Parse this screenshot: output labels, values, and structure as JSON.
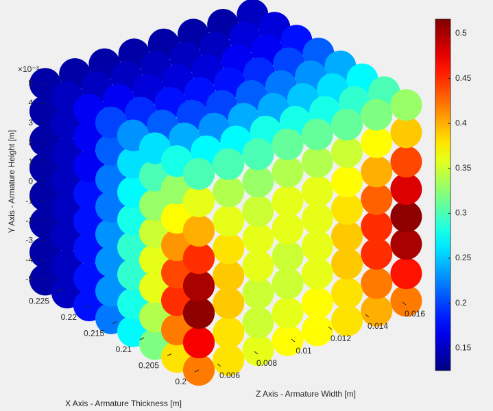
{
  "chart_data": {
    "type": "scatter3d",
    "x_label": "X Axis - Armature Thickness [m]",
    "y_label": "Y Axis - Armature Height [m]",
    "z_label": "Z Axis - Armature Width [m]",
    "y_scale_label": "×10⁻³",
    "x": [
      0.2,
      0.204,
      0.208,
      0.212,
      0.216,
      0.22,
      0.224,
      0.228
    ],
    "y": [
      -0.005,
      -0.0036,
      -0.0021,
      -0.0007,
      0.0007,
      0.0021,
      0.0036,
      0.005
    ],
    "z": [
      0.005,
      0.0066,
      0.0082,
      0.0098,
      0.0114,
      0.013,
      0.0146,
      0.0162
    ],
    "faces": {
      "z_min": [
        [
          0.42,
          0.38,
          0.32,
          0.27,
          0.22,
          0.18,
          0.15,
          0.14
        ],
        [
          0.47,
          0.42,
          0.34,
          0.28,
          0.23,
          0.18,
          0.15,
          0.14
        ],
        [
          0.51,
          0.45,
          0.36,
          0.29,
          0.23,
          0.18,
          0.15,
          0.14
        ],
        [
          0.5,
          0.44,
          0.36,
          0.29,
          0.23,
          0.18,
          0.15,
          0.14
        ],
        [
          0.45,
          0.41,
          0.35,
          0.28,
          0.22,
          0.18,
          0.15,
          0.14
        ],
        [
          0.4,
          0.37,
          0.33,
          0.27,
          0.22,
          0.17,
          0.15,
          0.14
        ],
        [
          0.36,
          0.33,
          0.3,
          0.26,
          0.21,
          0.17,
          0.15,
          0.14
        ],
        [
          0.3,
          0.28,
          0.26,
          0.23,
          0.2,
          0.17,
          0.15,
          0.14
        ]
      ],
      "x_min": [
        [
          0.42,
          0.38,
          0.36,
          0.37,
          0.37,
          0.38,
          0.4,
          0.42
        ],
        [
          0.47,
          0.38,
          0.35,
          0.36,
          0.37,
          0.38,
          0.42,
          0.46
        ],
        [
          0.51,
          0.39,
          0.35,
          0.35,
          0.36,
          0.39,
          0.45,
          0.5
        ],
        [
          0.5,
          0.39,
          0.36,
          0.35,
          0.36,
          0.39,
          0.45,
          0.51
        ],
        [
          0.45,
          0.38,
          0.36,
          0.36,
          0.36,
          0.38,
          0.43,
          0.48
        ],
        [
          0.4,
          0.36,
          0.35,
          0.36,
          0.36,
          0.37,
          0.4,
          0.44
        ],
        [
          0.36,
          0.34,
          0.33,
          0.34,
          0.34,
          0.35,
          0.37,
          0.39
        ],
        [
          0.3,
          0.3,
          0.3,
          0.31,
          0.31,
          0.31,
          0.32,
          0.33
        ]
      ],
      "y_max": [
        [
          0.3,
          0.3,
          0.3,
          0.31,
          0.31,
          0.31,
          0.32,
          0.33
        ],
        [
          0.28,
          0.27,
          0.27,
          0.28,
          0.28,
          0.28,
          0.29,
          0.3
        ],
        [
          0.26,
          0.24,
          0.23,
          0.24,
          0.24,
          0.25,
          0.26,
          0.27
        ],
        [
          0.23,
          0.21,
          0.2,
          0.2,
          0.21,
          0.22,
          0.23,
          0.24
        ],
        [
          0.2,
          0.19,
          0.18,
          0.18,
          0.18,
          0.19,
          0.2,
          0.21
        ],
        [
          0.17,
          0.17,
          0.16,
          0.16,
          0.16,
          0.17,
          0.17,
          0.18
        ],
        [
          0.15,
          0.15,
          0.15,
          0.15,
          0.15,
          0.15,
          0.16,
          0.16
        ],
        [
          0.14,
          0.14,
          0.14,
          0.14,
          0.14,
          0.14,
          0.14,
          0.15
        ]
      ]
    },
    "xlim": [
      0.2,
      0.228
    ],
    "ylim": [
      -0.005,
      0.005
    ],
    "zlim": [
      0.005,
      0.0162
    ],
    "xticks": [
      0.2,
      0.205,
      0.21,
      0.215,
      0.22,
      0.225
    ],
    "zticks": [
      0.006,
      0.008,
      0.01,
      0.012,
      0.014,
      0.016
    ],
    "yticks": [
      {
        "value": -0.005,
        "label": "-5"
      },
      {
        "value": -0.004,
        "label": "-4"
      },
      {
        "value": -0.003,
        "label": "-3"
      },
      {
        "value": -0.002,
        "label": "-2"
      },
      {
        "value": -0.001,
        "label": "-1"
      },
      {
        "value": 0,
        "label": "0"
      },
      {
        "value": 0.001,
        "label": "1"
      },
      {
        "value": 0.002,
        "label": "2"
      },
      {
        "value": 0.003,
        "label": "3"
      },
      {
        "value": 0.004,
        "label": "4"
      },
      {
        "value": 0.005,
        "label": "5"
      }
    ],
    "colormap": "jet",
    "clim": [
      0.125,
      0.516
    ],
    "cticks": [
      0.15,
      0.2,
      0.25,
      0.3,
      0.35,
      0.4,
      0.45,
      0.5
    ]
  }
}
